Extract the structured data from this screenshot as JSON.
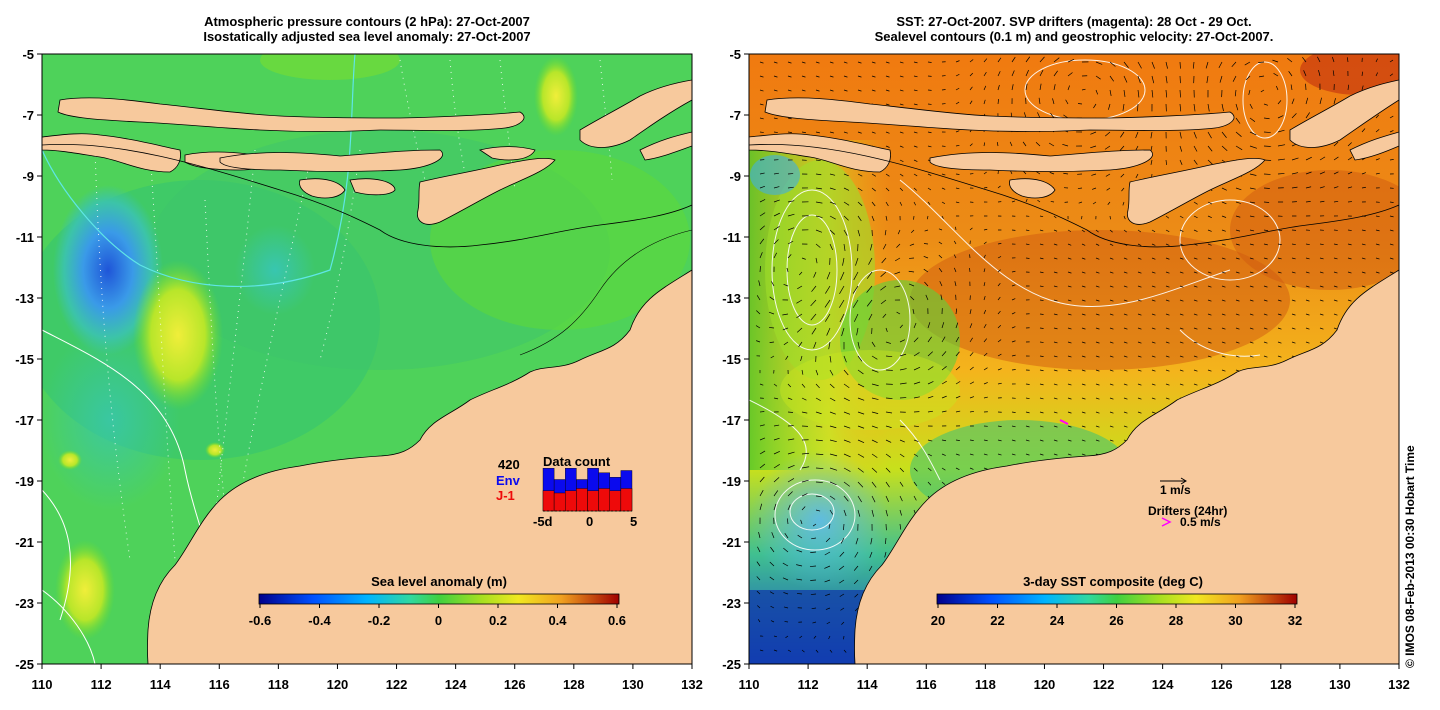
{
  "left_panel": {
    "title_line1": "Atmospheric pressure contours (2 hPa): 27-Oct-2007",
    "title_line2": "Isostatically adjusted sea level anomaly: 27-Oct-2007",
    "colorbar_title": "Sea level anomaly (m)",
    "colorbar_ticks": [
      "-0.6",
      "-0.4",
      "-0.2",
      "0",
      "0.2",
      "0.4",
      "0.6"
    ],
    "data_count": {
      "title": "Data count",
      "total": "420",
      "env_label": "Env",
      "j1_label": "J-1",
      "xticks": [
        "-5d",
        "0",
        "5"
      ],
      "env_values": [
        95,
        70,
        95,
        70,
        95,
        85,
        75,
        90
      ],
      "j1_values": [
        45,
        40,
        45,
        50,
        45,
        50,
        45,
        50
      ],
      "colors": {
        "env": "#0a0aee",
        "j1": "#ee0a0a"
      }
    }
  },
  "right_panel": {
    "title_line1": "SST: 27-Oct-2007. SVP drifters (magenta): 28 Oct - 29 Oct.",
    "title_line2": "Sealevel contours (0.1 m) and geostrophic velocity: 27-Oct-2007.",
    "colorbar_title": "3-day SST composite (deg C)",
    "colorbar_ticks": [
      "20",
      "22",
      "24",
      "26",
      "28",
      "30",
      "32"
    ],
    "velocity_scale_label": "1 m/s",
    "drifters_label": "Drifters (24hr)",
    "drifter_speed_label": "0.5 m/s"
  },
  "axes": {
    "x_ticks": [
      "110",
      "112",
      "114",
      "116",
      "118",
      "120",
      "122",
      "124",
      "126",
      "128",
      "130",
      "132"
    ],
    "y_ticks": [
      "-5",
      "-7",
      "-9",
      "-11",
      "-13",
      "-15",
      "-17",
      "-19",
      "-21",
      "-23",
      "-25"
    ]
  },
  "credit": "© IMOS 08-Feb-2013 00:30 Hobart Time",
  "colors": {
    "land": "#f7c99d",
    "land_text": "#000000",
    "contour_cyan": "#5fe6e6",
    "drifter": "#ff00ff"
  }
}
